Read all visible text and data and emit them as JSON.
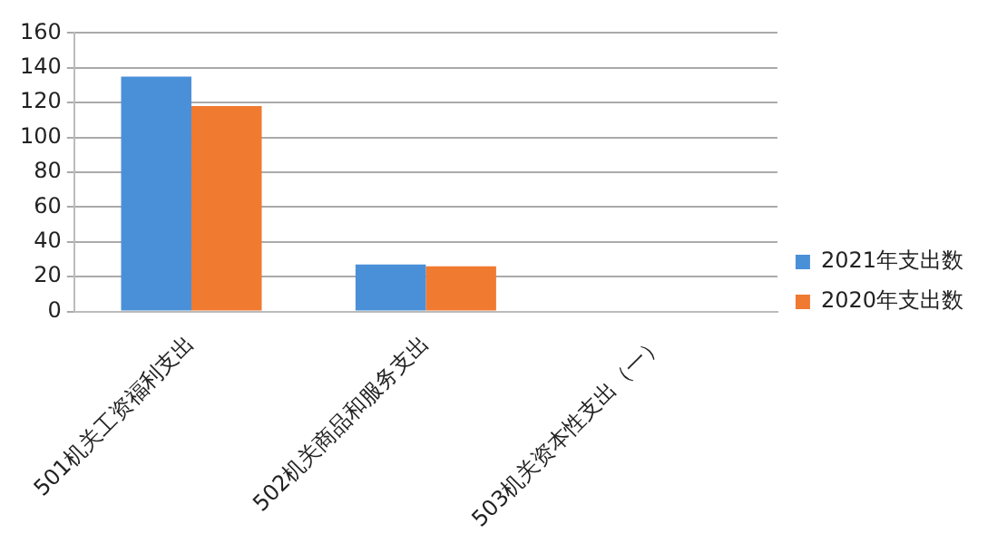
{
  "chart_data": {
    "type": "bar",
    "categories": [
      "501机关工资福利支出",
      "502机关商品和服务支出",
      "503机关资本性支出（一）"
    ],
    "series": [
      {
        "name": "2021年支出数",
        "color": "#4a90d9",
        "values": [
          135,
          27,
          0
        ]
      },
      {
        "name": "2020年支出数",
        "color": "#f07a30",
        "values": [
          118,
          26,
          0
        ]
      }
    ],
    "ylim": [
      0,
      160
    ],
    "yticks": [
      0,
      20,
      40,
      60,
      80,
      100,
      120,
      140,
      160
    ],
    "grid": "y",
    "legend": "right"
  }
}
